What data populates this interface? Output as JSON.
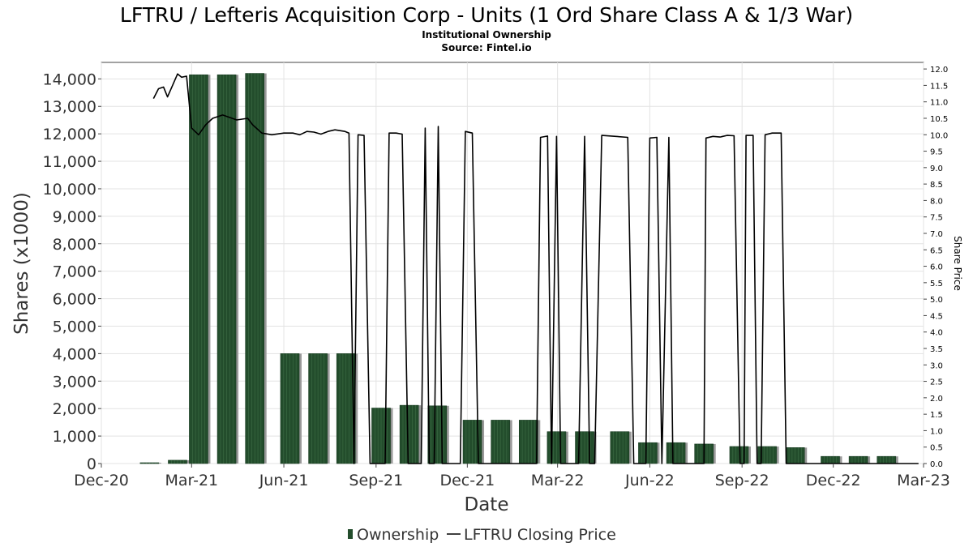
{
  "chart_data": {
    "type": "bar",
    "title": "LFTRU / Lefteris Acquisition Corp - Units (1 Ord Share Class A & 1/3 War)",
    "subtitle": "Institutional Ownership",
    "source": "Source: Fintel.io",
    "xlabel": "Date",
    "ylabel": "Shares (x1000)",
    "y2label": "Share Price",
    "ylim": [
      0,
      14600
    ],
    "y2lim": [
      0,
      12.2
    ],
    "xlim": [
      "2020-12-01",
      "2023-03-01"
    ],
    "grid": true,
    "legend_position": "bottom-center",
    "colors": {
      "bar": "#234d2c",
      "bar_shadow": "#999999",
      "line": "#000000"
    },
    "x_ticks": [
      {
        "date": "2020-12-01",
        "label": "Dec-20"
      },
      {
        "date": "2021-03-01",
        "label": "Mar-21"
      },
      {
        "date": "2021-06-01",
        "label": "Jun-21"
      },
      {
        "date": "2021-09-01",
        "label": "Sep-21"
      },
      {
        "date": "2021-12-01",
        "label": "Dec-21"
      },
      {
        "date": "2022-03-01",
        "label": "Mar-22"
      },
      {
        "date": "2022-06-01",
        "label": "Jun-22"
      },
      {
        "date": "2022-09-01",
        "label": "Sep-22"
      },
      {
        "date": "2022-12-01",
        "label": "Dec-22"
      },
      {
        "date": "2023-03-01",
        "label": "Mar-23"
      }
    ],
    "y_ticks": [
      "0",
      "1,000",
      "2,000",
      "3,000",
      "4,000",
      "5,000",
      "6,000",
      "7,000",
      "8,000",
      "9,000",
      "10,000",
      "11,000",
      "12,000",
      "13,000",
      "14,000"
    ],
    "y2_ticks": [
      "0.0",
      "0.5",
      "1.0",
      "1.5",
      "2.0",
      "2.5",
      "3.0",
      "3.5",
      "4.0",
      "4.5",
      "5.0",
      "5.5",
      "6.0",
      "6.5",
      "7.0",
      "7.5",
      "8.0",
      "8.5",
      "9.0",
      "9.5",
      "10.0",
      "10.5",
      "11.0",
      "11.5",
      "12.0"
    ],
    "series": [
      {
        "name": "Ownership",
        "type": "bar",
        "points": [
          {
            "date": "2021-01-18",
            "value": 15
          },
          {
            "date": "2021-02-15",
            "value": 120
          },
          {
            "date": "2021-03-08",
            "value": 14150
          },
          {
            "date": "2021-04-05",
            "value": 14150
          },
          {
            "date": "2021-05-03",
            "value": 14200
          },
          {
            "date": "2021-06-07",
            "value": 4000
          },
          {
            "date": "2021-07-05",
            "value": 4000
          },
          {
            "date": "2021-08-02",
            "value": 4000
          },
          {
            "date": "2021-09-06",
            "value": 2020
          },
          {
            "date": "2021-10-04",
            "value": 2120
          },
          {
            "date": "2021-11-01",
            "value": 2100
          },
          {
            "date": "2021-12-06",
            "value": 1580
          },
          {
            "date": "2022-01-03",
            "value": 1580
          },
          {
            "date": "2022-01-31",
            "value": 1580
          },
          {
            "date": "2022-02-28",
            "value": 1160
          },
          {
            "date": "2022-03-28",
            "value": 1160
          },
          {
            "date": "2022-05-02",
            "value": 1160
          },
          {
            "date": "2022-05-30",
            "value": 760
          },
          {
            "date": "2022-06-27",
            "value": 760
          },
          {
            "date": "2022-07-25",
            "value": 710
          },
          {
            "date": "2022-08-29",
            "value": 620
          },
          {
            "date": "2022-09-26",
            "value": 620
          },
          {
            "date": "2022-10-24",
            "value": 580
          },
          {
            "date": "2022-11-28",
            "value": 260
          },
          {
            "date": "2022-12-26",
            "value": 260
          },
          {
            "date": "2023-01-23",
            "value": 260
          }
        ]
      },
      {
        "name": "LFTRU Closing Price",
        "type": "line",
        "axis": "right",
        "points": [
          [
            "2021-01-22",
            11.1
          ],
          [
            "2021-01-27",
            11.4
          ],
          [
            "2021-02-01",
            11.45
          ],
          [
            "2021-02-05",
            11.15
          ],
          [
            "2021-02-10",
            11.5
          ],
          [
            "2021-02-15",
            11.85
          ],
          [
            "2021-02-19",
            11.75
          ],
          [
            "2021-02-24",
            11.78
          ],
          [
            "2021-03-01",
            10.2
          ],
          [
            "2021-03-08",
            10.0
          ],
          [
            "2021-03-15",
            10.3
          ],
          [
            "2021-03-22",
            10.5
          ],
          [
            "2021-04-01",
            10.6
          ],
          [
            "2021-04-15",
            10.45
          ],
          [
            "2021-04-26",
            10.5
          ],
          [
            "2021-05-01",
            10.3
          ],
          [
            "2021-05-10",
            10.05
          ],
          [
            "2021-05-20",
            10.0
          ],
          [
            "2021-06-01",
            10.05
          ],
          [
            "2021-06-10",
            10.05
          ],
          [
            "2021-06-17",
            10.0
          ],
          [
            "2021-06-24",
            10.1
          ],
          [
            "2021-07-01",
            10.08
          ],
          [
            "2021-07-08",
            10.02
          ],
          [
            "2021-07-15",
            10.1
          ],
          [
            "2021-07-22",
            10.15
          ],
          [
            "2021-08-01",
            10.1
          ],
          [
            "2021-08-05",
            10.05
          ],
          [
            "2021-08-10",
            0.0
          ],
          [
            "2021-08-14",
            10.0
          ],
          [
            "2021-08-20",
            9.98
          ],
          [
            "2021-08-26",
            0.0
          ],
          [
            "2021-09-03",
            0.0
          ],
          [
            "2021-09-10",
            0.0
          ],
          [
            "2021-09-14",
            10.05
          ],
          [
            "2021-09-21",
            10.05
          ],
          [
            "2021-09-27",
            10.02
          ],
          [
            "2021-10-03",
            0.0
          ],
          [
            "2021-10-10",
            0.0
          ],
          [
            "2021-10-16",
            0.0
          ],
          [
            "2021-10-20",
            10.2
          ],
          [
            "2021-10-24",
            0.0
          ],
          [
            "2021-10-29",
            0.0
          ],
          [
            "2021-11-02",
            10.25
          ],
          [
            "2021-11-06",
            0.0
          ],
          [
            "2021-11-15",
            0.0
          ],
          [
            "2021-11-24",
            0.0
          ],
          [
            "2021-11-29",
            10.1
          ],
          [
            "2021-12-06",
            10.05
          ],
          [
            "2021-12-12",
            0.0
          ],
          [
            "2021-12-25",
            0.0
          ],
          [
            "2022-01-10",
            0.0
          ],
          [
            "2022-01-24",
            0.0
          ],
          [
            "2022-02-08",
            0.0
          ],
          [
            "2022-02-12",
            9.92
          ],
          [
            "2022-02-19",
            9.96
          ],
          [
            "2022-02-23",
            0.0
          ],
          [
            "2022-02-28",
            9.95
          ],
          [
            "2022-03-04",
            0.0
          ],
          [
            "2022-03-12",
            0.0
          ],
          [
            "2022-03-22",
            0.0
          ],
          [
            "2022-03-28",
            9.95
          ],
          [
            "2022-04-02",
            0.0
          ],
          [
            "2022-04-07",
            0.0
          ],
          [
            "2022-04-14",
            9.98
          ],
          [
            "2022-04-28",
            9.95
          ],
          [
            "2022-05-10",
            9.92
          ],
          [
            "2022-05-16",
            0.0
          ],
          [
            "2022-05-22",
            0.0
          ],
          [
            "2022-05-28",
            0.0
          ],
          [
            "2022-06-01",
            9.9
          ],
          [
            "2022-06-08",
            9.92
          ],
          [
            "2022-06-13",
            0.0
          ],
          [
            "2022-06-20",
            9.92
          ],
          [
            "2022-06-24",
            0.0
          ],
          [
            "2022-07-06",
            0.0
          ],
          [
            "2022-07-18",
            0.0
          ],
          [
            "2022-07-25",
            0.0
          ],
          [
            "2022-07-27",
            9.9
          ],
          [
            "2022-08-03",
            9.95
          ],
          [
            "2022-08-10",
            9.93
          ],
          [
            "2022-08-17",
            9.98
          ],
          [
            "2022-08-24",
            9.97
          ],
          [
            "2022-08-30",
            0.0
          ],
          [
            "2022-09-03",
            0.0
          ],
          [
            "2022-09-05",
            9.98
          ],
          [
            "2022-09-12",
            9.98
          ],
          [
            "2022-09-16",
            0.0
          ],
          [
            "2022-09-20",
            0.0
          ],
          [
            "2022-09-24",
            10.0
          ],
          [
            "2022-10-01",
            10.05
          ],
          [
            "2022-10-10",
            10.05
          ],
          [
            "2022-10-15",
            0.0
          ],
          [
            "2022-10-25",
            0.0
          ],
          [
            "2022-11-07",
            0.0
          ],
          [
            "2022-11-25",
            0.0
          ],
          [
            "2022-12-12",
            0.0
          ],
          [
            "2023-01-02",
            0.0
          ],
          [
            "2023-01-20",
            0.0
          ],
          [
            "2023-02-10",
            0.0
          ],
          [
            "2023-02-24",
            0.0
          ]
        ]
      }
    ]
  }
}
